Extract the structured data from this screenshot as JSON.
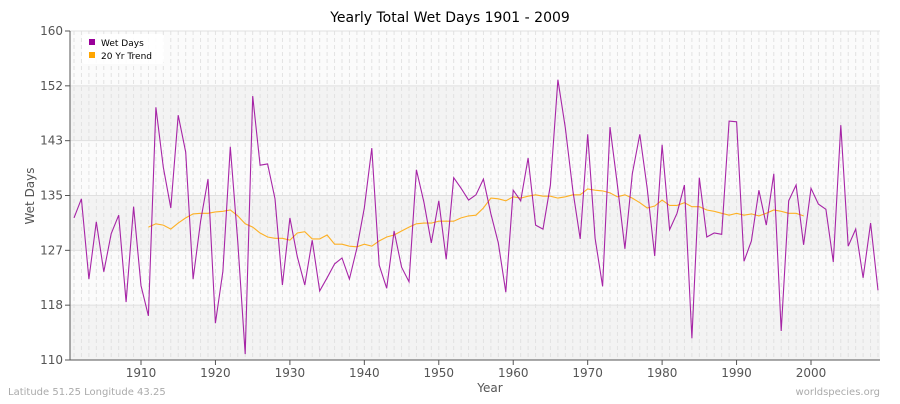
{
  "chart_data": {
    "type": "line",
    "title": "Yearly Total Wet Days 1901 - 2009",
    "xlabel": "Year",
    "ylabel": "Wet Days",
    "xlim": [
      1901,
      2009
    ],
    "ylim": [
      110,
      160
    ],
    "yticks": [
      110,
      118,
      127,
      135,
      143,
      152,
      160
    ],
    "xticks": [
      1910,
      1920,
      1930,
      1940,
      1950,
      1960,
      1970,
      1980,
      1990,
      2000
    ],
    "grid": true,
    "legend_position": "top-left",
    "series": [
      {
        "name": "Wet Days",
        "color": "#990099",
        "start_year": 1901,
        "values": [
          131.6,
          134.5,
          122.3,
          131,
          123.4,
          129.2,
          132,
          118.8,
          133.3,
          121.3,
          116.7,
          148.4,
          139.3,
          133.1,
          147.2,
          141.6,
          122.3,
          131.1,
          137.5,
          115.6,
          123.5,
          142.4,
          127.9,
          110.9,
          150.1,
          139.6,
          139.8,
          134.5,
          121.4,
          131.6,
          125.7,
          121.4,
          128.2,
          120.5,
          122.5,
          124.6,
          125.5,
          122.3,
          127,
          133.1,
          142.2,
          124.4,
          120.9,
          129.6,
          124.1,
          121.9,
          138.9,
          134,
          127.8,
          134.2,
          125.3,
          137.7,
          136.1,
          134.3,
          135.1,
          137.5,
          132.2,
          127.8,
          120.3,
          135.8,
          134.2,
          140.7,
          130.5,
          129.9,
          136.6,
          152.6,
          145.3,
          135.8,
          128.4,
          144.3,
          128.5,
          121.2,
          145.4,
          136.6,
          126.9,
          138.3,
          144.3,
          136.1,
          125.8,
          142.7,
          129.8,
          132.3,
          136.6,
          113.3,
          137.7,
          128.7,
          129.3,
          129.1,
          146.3,
          146.2,
          125,
          128.1,
          135.8,
          130.5,
          138.3,
          114.4,
          134.2,
          136.6,
          127.5,
          136.1,
          133.7,
          132.9,
          124.9,
          145.7,
          127.3,
          129.9,
          122.5,
          130.8,
          120.6
        ]
      },
      {
        "name": "20 Yr Trend",
        "color": "#FFA500",
        "start_year": 1911,
        "values": [
          130.2,
          130.7,
          130.5,
          129.9,
          130.8,
          131.6,
          132.2,
          132.3,
          132.3,
          132.5,
          132.6,
          132.8,
          131.9,
          130.7,
          130.2,
          129.3,
          128.7,
          128.5,
          128.5,
          128.2,
          129.3,
          129.5,
          128.4,
          128.4,
          129,
          127.6,
          127.6,
          127.3,
          127.2,
          127.6,
          127.3,
          128.1,
          128.7,
          129,
          129.6,
          130.2,
          130.7,
          130.8,
          130.8,
          131.1,
          131.1,
          131.1,
          131.6,
          131.9,
          132,
          133.1,
          134.6,
          134.5,
          134.2,
          134.8,
          134.6,
          134.9,
          135.1,
          134.9,
          134.9,
          134.6,
          134.8,
          135.1,
          135.1,
          136,
          135.8,
          135.7,
          135.4,
          134.8,
          135.1,
          134.6,
          133.9,
          133.1,
          133.4,
          134.3,
          133.5,
          133.5,
          133.9,
          133.3,
          133.3,
          132.8,
          132.6,
          132.3,
          132,
          132.3,
          132,
          132.2,
          131.9,
          132.3,
          132.8,
          132.6,
          132.3,
          132.3,
          131.9
        ]
      }
    ]
  },
  "footer": {
    "location": "Latitude 51.25 Longitude 43.25",
    "source": "worldspecies.org"
  }
}
